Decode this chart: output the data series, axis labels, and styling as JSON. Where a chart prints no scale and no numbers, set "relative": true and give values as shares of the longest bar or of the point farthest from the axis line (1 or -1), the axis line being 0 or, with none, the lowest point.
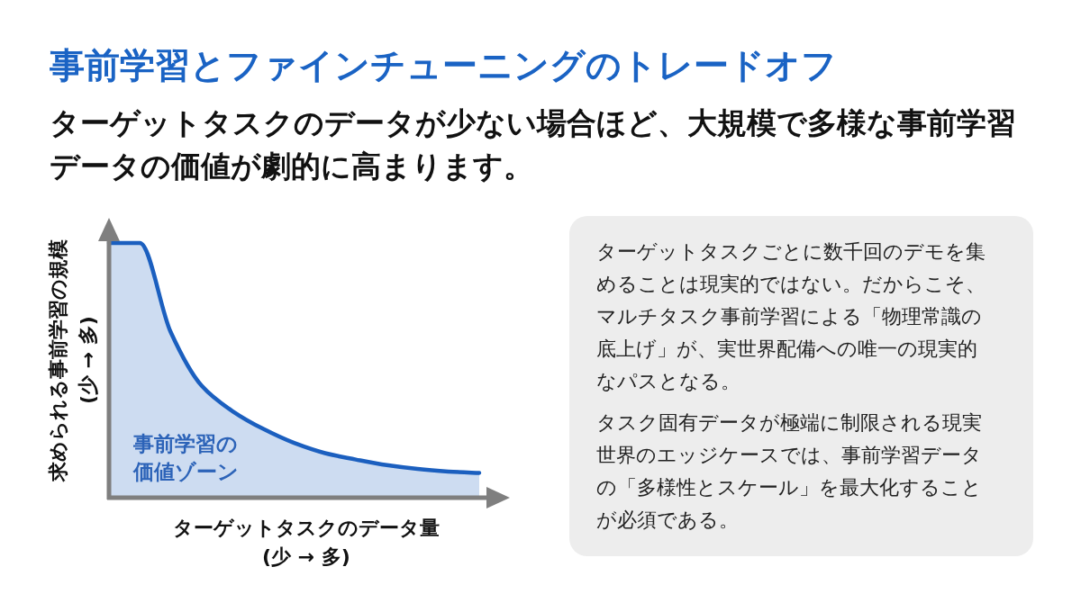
{
  "chart_data": [
    {
      "type": "area",
      "title": "事前学習とファインチューニングのトレードオフ",
      "subtitle": "ターゲットタスクのデータが少ない場合ほど、大規模で多様な事前学習データの価値が劇的に高まります。",
      "xlabel": "ターゲットタスクのデータ量\n(少 → 多)",
      "ylabel": "求められる事前学習の規模\n(少 → 多)",
      "annotations": [
        "事前学習の価値ゾーン"
      ],
      "relative": true,
      "categories": [
        null,
        null,
        null,
        null,
        null,
        null,
        null,
        null,
        null,
        null,
        null,
        null,
        null
      ],
      "series": [
        {
          "color": "#1b5fbf",
          "values": [
            1,
            1,
            0.65,
            0.44,
            0.34,
            0.27,
            0.215,
            0.175,
            0.15,
            0.128,
            0.113,
            0.103,
            0.097
          ]
        }
      ]
    },
    {
      "type": "other",
      "annotations": [
        "ターゲットタスクごとに数千回のデモを集めることは現実的ではない。だからこそ、マルチタスク事前学習による「物理常識の底上げ」が、実世界配備への唯一の現実的なパスとなる。",
        "タスク固有データが極端に制限される現実世界のエッジケースでは、事前学習データの「多様性とスケール」を最大化することが必須である。"
      ]
    }
  ]
}
